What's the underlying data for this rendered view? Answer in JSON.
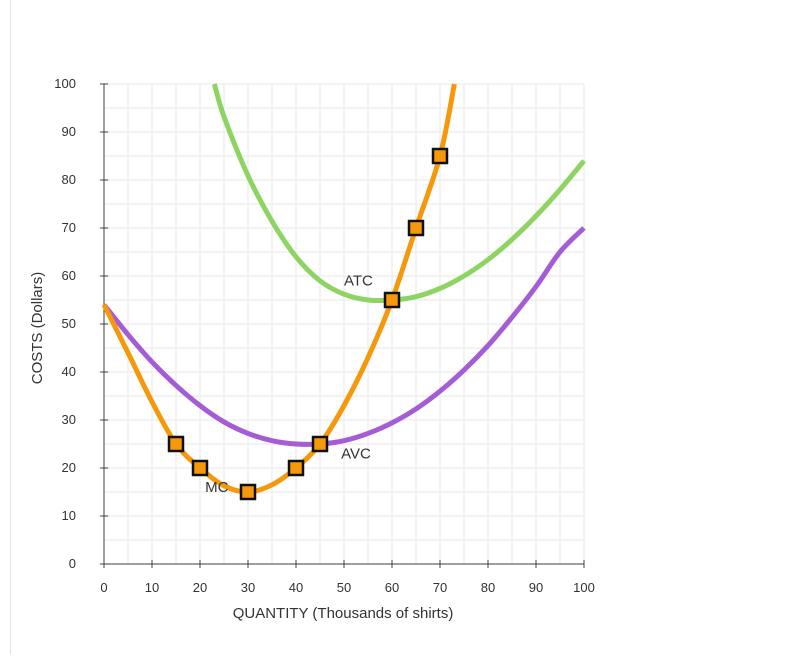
{
  "chart_data": {
    "type": "line",
    "xlabel": "QUANTITY (Thousands of shirts)",
    "ylabel": "COSTS (Dollars)",
    "xlim": [
      0,
      100
    ],
    "ylim": [
      0,
      100
    ],
    "x_ticks": [
      0,
      10,
      20,
      30,
      40,
      50,
      60,
      70,
      80,
      90,
      100
    ],
    "y_ticks": [
      0,
      10,
      20,
      30,
      40,
      50,
      60,
      70,
      80,
      90,
      100
    ],
    "grid": true,
    "series": [
      {
        "name": "ATC",
        "color": "#8ed462",
        "x": [
          23,
          25,
          30,
          35,
          40,
          45,
          50,
          55,
          60,
          65,
          70,
          75,
          80,
          85,
          90,
          95,
          100
        ],
        "y": [
          100,
          93.2,
          80.9,
          71.4,
          64.0,
          59.0,
          56.2,
          55.0,
          55.0,
          55.7,
          57.4,
          60.0,
          63.4,
          67.6,
          72.5,
          78.0,
          84.0
        ]
      },
      {
        "name": "AVC",
        "color": "#a45dd4",
        "x": [
          0,
          5,
          10,
          15,
          20,
          25,
          30,
          35,
          40,
          45,
          50,
          55,
          60,
          65,
          70,
          75,
          80,
          85,
          90,
          95,
          100
        ],
        "y": [
          54,
          47.8,
          42.1,
          37.2,
          33.0,
          29.6,
          27.2,
          25.7,
          25.0,
          25.0,
          25.7,
          27.2,
          29.4,
          32.3,
          36.0,
          40.4,
          45.5,
          51.4,
          57.8,
          65.0,
          70.0
        ]
      },
      {
        "name": "MC",
        "color": "#f5980c",
        "x": [
          0,
          5,
          10,
          15,
          20,
          25,
          30,
          35,
          40,
          45,
          50,
          55,
          60,
          65,
          70,
          73
        ],
        "y": [
          54,
          44.0,
          33.8,
          25.0,
          20.0,
          16.3,
          15.0,
          16.5,
          20.0,
          25.0,
          33.0,
          43.0,
          55.0,
          70.0,
          85.0,
          100
        ]
      }
    ],
    "markers": {
      "color": "#f5980c",
      "points": [
        {
          "x": 15,
          "y": 25
        },
        {
          "x": 20,
          "y": 20
        },
        {
          "x": 30,
          "y": 15
        },
        {
          "x": 40,
          "y": 20
        },
        {
          "x": 45,
          "y": 25
        },
        {
          "x": 60,
          "y": 55
        },
        {
          "x": 65,
          "y": 70
        },
        {
          "x": 70,
          "y": 85
        }
      ]
    },
    "annotations": [
      {
        "text": "ATC",
        "x": 53,
        "y": 58
      },
      {
        "text": "AVC",
        "x": 52.5,
        "y": 22
      },
      {
        "text": "MC",
        "x": 23.5,
        "y": 15
      }
    ]
  }
}
